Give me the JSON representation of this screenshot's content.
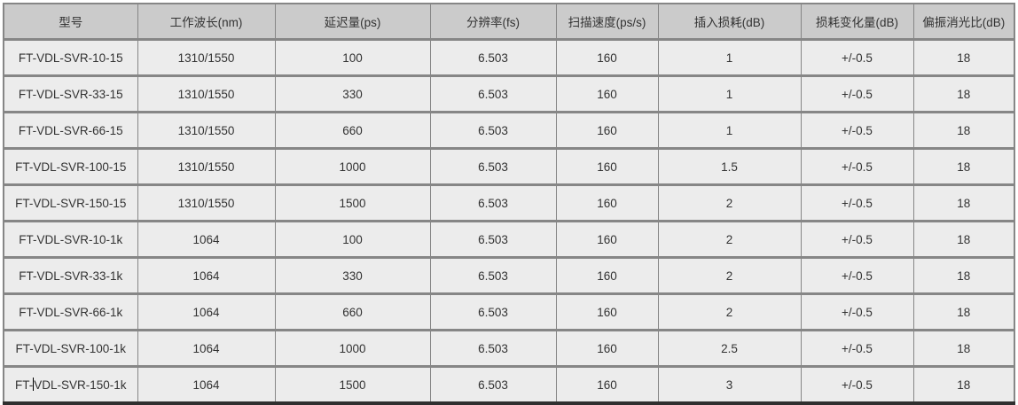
{
  "colors": {
    "header_bg": "#cbcbcb",
    "row_bg": "#ececec",
    "inner_border": "#868686",
    "outer_bottom_border": "#2f2f2f",
    "text": "#333333"
  },
  "table": {
    "headers": [
      "型号",
      "工作波长(nm)",
      "延迟量(ps)",
      "分辨率(fs)",
      "扫描速度(ps/s)",
      "插入损耗(dB)",
      "损耗变化量(dB)",
      "偏振消光比(dB)"
    ],
    "rows": [
      [
        "FT-VDL-SVR-10-15",
        "1310/1550",
        "100",
        "6.503",
        "160",
        "1",
        "+/-0.5",
        "18"
      ],
      [
        "FT-VDL-SVR-33-15",
        "1310/1550",
        "330",
        "6.503",
        "160",
        "1",
        "+/-0.5",
        "18"
      ],
      [
        "FT-VDL-SVR-66-15",
        "1310/1550",
        "660",
        "6.503",
        "160",
        "1",
        "+/-0.5",
        "18"
      ],
      [
        "FT-VDL-SVR-100-15",
        "1310/1550",
        "1000",
        "6.503",
        "160",
        "1.5",
        "+/-0.5",
        "18"
      ],
      [
        "FT-VDL-SVR-150-15",
        "1310/1550",
        "1500",
        "6.503",
        "160",
        "2",
        "+/-0.5",
        "18"
      ],
      [
        "FT-VDL-SVR-10-1k",
        "1064",
        "100",
        "6.503",
        "160",
        "2",
        "+/-0.5",
        "18"
      ],
      [
        "FT-VDL-SVR-33-1k",
        "1064",
        "330",
        "6.503",
        "160",
        "2",
        "+/-0.5",
        "18"
      ],
      [
        "FT-VDL-SVR-66-1k",
        "1064",
        "660",
        "6.503",
        "160",
        "2",
        "+/-0.5",
        "18"
      ],
      [
        "FT-VDL-SVR-100-1k",
        "1064",
        "1000",
        "6.503",
        "160",
        "2.5",
        "+/-0.5",
        "18"
      ],
      [
        "FT-VDL-SVR-150-1k",
        "1064",
        "1500",
        "6.503",
        "160",
        "3",
        "+/-0.5",
        "18"
      ]
    ],
    "text_cursor": {
      "row_index": 9,
      "col_index": 0,
      "after_text": "FT-"
    }
  }
}
